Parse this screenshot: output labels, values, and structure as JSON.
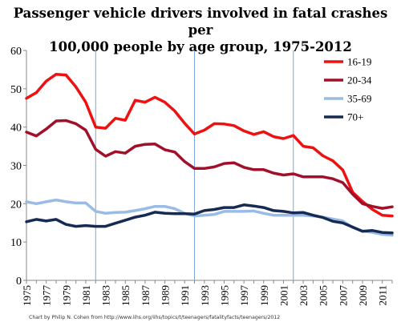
{
  "chart_data": {
    "type": "line",
    "title_line1": "Passenger vehicle drivers involved in fatal crashes per",
    "title_line2": "100,000 people by age group, 1975-2012",
    "credit": "Chart by Philip N. Cohen from http://www.iihs.org/iihs/topics/t/teenagers/fatalityfacts/teenagers/2012",
    "x": [
      1975,
      1976,
      1977,
      1978,
      1979,
      1980,
      1981,
      1982,
      1983,
      1984,
      1985,
      1986,
      1987,
      1988,
      1989,
      1990,
      1991,
      1992,
      1993,
      1994,
      1995,
      1996,
      1997,
      1998,
      1999,
      2000,
      2001,
      2002,
      2003,
      2004,
      2005,
      2006,
      2007,
      2008,
      2009,
      2010,
      2011,
      2012
    ],
    "xtick_labels": [
      "1975",
      "1977",
      "1979",
      "1981",
      "1983",
      "1985",
      "1987",
      "1989",
      "1991",
      "1993",
      "1995",
      "1997",
      "1999",
      "2001",
      "2003",
      "2005",
      "2007",
      "2009",
      "2011"
    ],
    "ylim": [
      0,
      60
    ],
    "yticks": [
      0,
      10,
      20,
      30,
      40,
      50,
      60
    ],
    "vlines": [
      1982,
      1992,
      2002
    ],
    "legend_position": "top-right",
    "series": [
      {
        "name": "16-19",
        "color": "#ee1111",
        "values": [
          47.5,
          49,
          52,
          53.8,
          53.6,
          50.5,
          46.5,
          40,
          39.7,
          42.3,
          41.8,
          47,
          46.5,
          47.8,
          46.5,
          44.2,
          41,
          38.2,
          39.2,
          40.9,
          40.8,
          40.4,
          39,
          38.1,
          38.8,
          37.5,
          37,
          37.8,
          35,
          34.6,
          32.5,
          31.2,
          28.8,
          23,
          20.6,
          18.5,
          17,
          16.8
        ]
      },
      {
        "name": "20-34",
        "color": "#a0102a",
        "values": [
          38.7,
          37.7,
          39.5,
          41.6,
          41.7,
          40.9,
          39.2,
          34.2,
          32.4,
          33.6,
          33.2,
          35,
          35.5,
          35.6,
          34.1,
          33.5,
          31,
          29.2,
          29.2,
          29.6,
          30.5,
          30.7,
          29.5,
          28.9,
          28.9,
          28,
          27.5,
          27.8,
          27,
          27,
          27,
          26.5,
          25.5,
          22.5,
          20,
          19.3,
          18.8,
          19.2
        ]
      },
      {
        "name": "35-69",
        "color": "#99bbe6",
        "values": [
          20.5,
          20,
          20.5,
          21,
          20.5,
          20.2,
          20.2,
          18,
          17.5,
          17.7,
          17.8,
          18.2,
          18.7,
          19.3,
          19.3,
          18.7,
          17.5,
          16.8,
          17,
          17.2,
          18,
          18,
          18,
          18.1,
          17.5,
          17,
          17,
          17,
          17,
          16.8,
          16.5,
          16,
          15.5,
          13.8,
          12.9,
          12.5,
          12,
          11.8
        ]
      },
      {
        "name": "70+",
        "color": "#152b54",
        "values": [
          15.3,
          15.9,
          15.5,
          15.9,
          14.6,
          14.1,
          14.3,
          14.1,
          14.1,
          14.9,
          15.7,
          16.5,
          17,
          17.8,
          17.5,
          17.4,
          17.4,
          17.3,
          18.2,
          18.5,
          19,
          19,
          19.7,
          19.4,
          19,
          18.2,
          18,
          17.6,
          17.7,
          17,
          16.4,
          15.4,
          15,
          13.9,
          12.8,
          13,
          12.5,
          12.4
        ]
      }
    ]
  }
}
